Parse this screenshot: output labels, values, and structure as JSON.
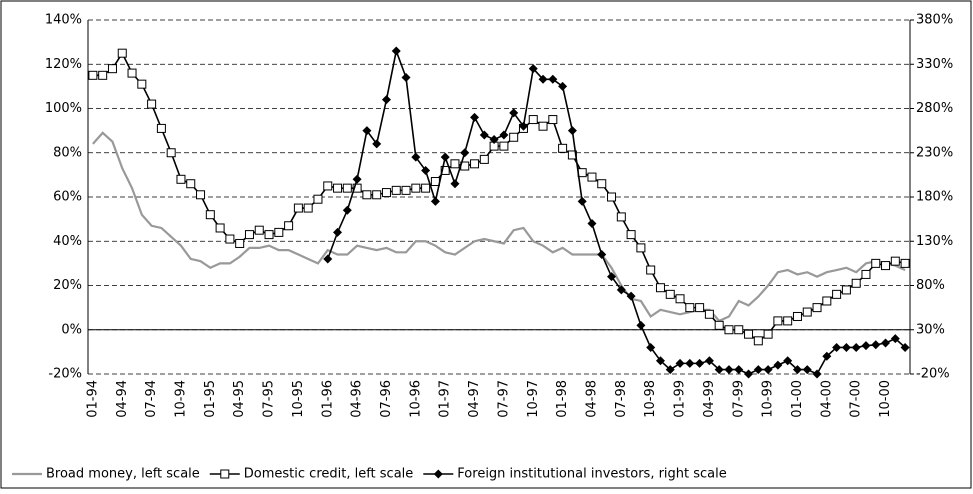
{
  "chart_data": {
    "type": "line",
    "categories": [
      "01-94",
      null,
      null,
      "04-94",
      null,
      null,
      "07-94",
      null,
      null,
      "10-94",
      null,
      null,
      "01-95",
      null,
      null,
      "04-95",
      null,
      null,
      "07-95",
      null,
      null,
      "10-95",
      null,
      null,
      "01-96",
      null,
      null,
      "04-96",
      null,
      null,
      "07-96",
      null,
      null,
      "10-96",
      null,
      null,
      "01-97",
      null,
      null,
      "04-97",
      null,
      null,
      "07-97",
      null,
      null,
      "10-97",
      null,
      null,
      "01-98",
      null,
      null,
      "04-98",
      null,
      null,
      "07-98",
      null,
      null,
      "10-98",
      null,
      null,
      "01-99",
      null,
      null,
      "04-99",
      null,
      null,
      "07-99",
      null,
      null,
      "10-99",
      null,
      null,
      "01-00",
      null,
      null,
      "04-00",
      null,
      null,
      "07-00",
      null,
      null,
      "10-00",
      null,
      null
    ],
    "series": [
      {
        "name": "Broad money, left scale",
        "color": "#999999",
        "marker": "none",
        "values": [
          84,
          89,
          85,
          73,
          64,
          52,
          47,
          46,
          42,
          38,
          32,
          31,
          28,
          30,
          30,
          33,
          37,
          37,
          38,
          36,
          36,
          34,
          32,
          30,
          36,
          34,
          34,
          38,
          37,
          36,
          37,
          35,
          35,
          40,
          40,
          38,
          35,
          34,
          37,
          40,
          41,
          40,
          39,
          45,
          46,
          40,
          38,
          35,
          37,
          34,
          34,
          34,
          34,
          28,
          20,
          14,
          13,
          6,
          9,
          8,
          7,
          8,
          9,
          9,
          4,
          6,
          13,
          11,
          15,
          20,
          26,
          27,
          25,
          26,
          24,
          26,
          27,
          28,
          26,
          30,
          31,
          30,
          29,
          27
        ]
      },
      {
        "name": "Domestic credit, left scale",
        "color": "#000000",
        "marker": "square",
        "values": [
          115,
          115,
          118,
          125,
          116,
          111,
          102,
          91,
          80,
          68,
          66,
          61,
          52,
          46,
          41,
          39,
          43,
          45,
          43,
          44,
          47,
          55,
          55,
          59,
          65,
          64,
          64,
          64,
          61,
          61,
          62,
          63,
          63,
          64,
          64,
          67,
          72,
          75,
          74,
          75,
          77,
          83,
          83,
          87,
          91,
          95,
          92,
          95,
          82,
          79,
          71,
          69,
          66,
          60,
          51,
          43,
          37,
          27,
          19,
          16,
          14,
          10,
          10,
          7,
          2,
          0,
          0,
          -2,
          -5,
          -2,
          4,
          4,
          6,
          8,
          10,
          13,
          16,
          18,
          21,
          25,
          30,
          29,
          31,
          30
        ]
      },
      {
        "name": "Foreign institutional investors, right scale",
        "color": "#000000",
        "marker": "diamond",
        "axis": "y2",
        "values": [
          null,
          null,
          null,
          null,
          null,
          null,
          null,
          null,
          null,
          null,
          null,
          null,
          null,
          null,
          null,
          null,
          null,
          null,
          null,
          null,
          null,
          null,
          null,
          null,
          110,
          140,
          165,
          200,
          255,
          240,
          290,
          345,
          315,
          225,
          210,
          175,
          225,
          195,
          230,
          270,
          250,
          245,
          250,
          275,
          260,
          325,
          313,
          313,
          305,
          255,
          175,
          150,
          115,
          90,
          75,
          68,
          35,
          10,
          -5,
          -15,
          -8,
          -8,
          -8,
          -5,
          -15,
          -15,
          -15,
          -20,
          -15,
          -15,
          -10,
          -5,
          -15,
          -15,
          -20,
          0,
          10,
          10,
          10,
          12,
          13,
          15,
          20,
          10
        ]
      }
    ],
    "ylim": [
      -20,
      140
    ],
    "yticks": [
      {
        "value": -20,
        "label": "-20%"
      },
      {
        "value": 0,
        "label": "0%"
      },
      {
        "value": 20,
        "label": "20%"
      },
      {
        "value": 40,
        "label": "40%"
      },
      {
        "value": 60,
        "label": "60%"
      },
      {
        "value": 80,
        "label": "80%"
      },
      {
        "value": 100,
        "label": "100%"
      },
      {
        "value": 120,
        "label": "120%"
      },
      {
        "value": 140,
        "label": "140%"
      }
    ],
    "y2lim": [
      -20,
      380
    ],
    "y2ticks": [
      {
        "value": -20,
        "label": "-20%"
      },
      {
        "value": 30,
        "label": "30%"
      },
      {
        "value": 80,
        "label": "80%"
      },
      {
        "value": 130,
        "label": "130%"
      },
      {
        "value": 180,
        "label": "180%"
      },
      {
        "value": 230,
        "label": "230%"
      },
      {
        "value": 280,
        "label": "280%"
      },
      {
        "value": 330,
        "label": "330%"
      },
      {
        "value": 380,
        "label": "380%"
      }
    ],
    "grid": true,
    "legend": "bottom"
  }
}
